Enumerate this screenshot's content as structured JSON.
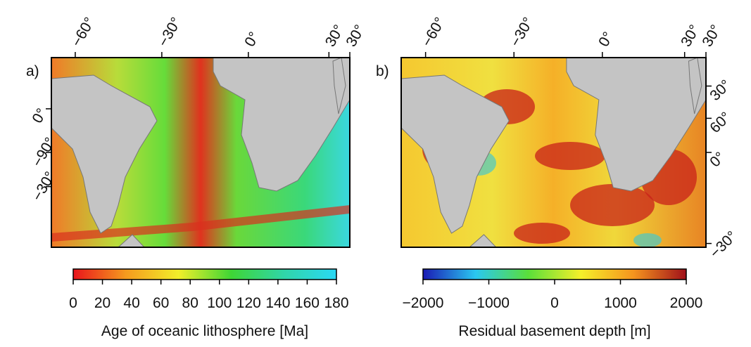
{
  "panels": [
    {
      "label": "a)",
      "top_labels": [
        "−60°",
        "−30°",
        "0°",
        "30°",
        "30°"
      ],
      "left_labels": [
        "0°",
        "−90°",
        "−30°"
      ],
      "right_labels": [],
      "colorbar": {
        "title": "Age of oceanic lithosphere [Ma]",
        "range": [
          0,
          180
        ],
        "ticks": [
          0,
          20,
          40,
          60,
          80,
          100,
          120,
          140,
          160,
          180
        ],
        "colors": [
          "#e8141c",
          "#f59a1e",
          "#f2ef2a",
          "#3fd635",
          "#30d6a8",
          "#2ad8f5"
        ]
      }
    },
    {
      "label": "b)",
      "top_labels": [
        "−60°",
        "−30°",
        "0°",
        "30°",
        "30°"
      ],
      "left_labels": [],
      "right_labels": [
        "30°",
        "60°",
        "0°",
        "−30°"
      ],
      "colorbar": {
        "title": "Residual basement depth [m]",
        "range": [
          -2000,
          2000
        ],
        "ticks": [
          {
            "value": -2000,
            "label": "−2000"
          },
          {
            "value": -1000,
            "label": "−1000"
          },
          0,
          1000,
          2000
        ],
        "colors": [
          "#1a1ab4",
          "#2ac8f0",
          "#5ade3a",
          "#f5f02a",
          "#f5941e",
          "#a0101a"
        ]
      }
    }
  ]
}
